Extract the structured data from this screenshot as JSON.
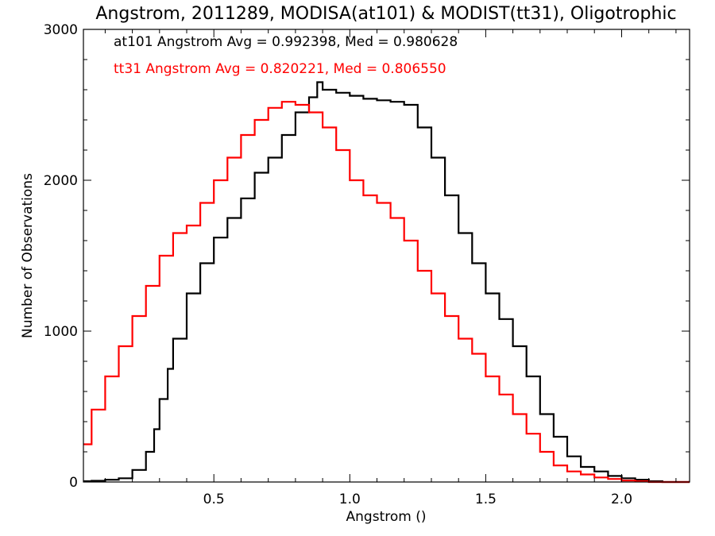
{
  "chart_data": {
    "type": "line",
    "style": "step-histogram",
    "title": "Angstrom, 2011289, MODISA(at101) & MODIST(tt31), Oligotrophic",
    "xlabel": "Angstrom ()",
    "ylabel": "Number of Observations",
    "xlim": [
      0.02,
      2.25
    ],
    "ylim": [
      0,
      3000
    ],
    "xticks": [
      0.5,
      1.0,
      1.5,
      2.0
    ],
    "xtick_labels": [
      "0.5",
      "1.0",
      "1.5",
      "2.0"
    ],
    "yticks": [
      0,
      1000,
      2000,
      3000
    ],
    "ytick_labels": [
      "0",
      "1000",
      "2000",
      "3000"
    ],
    "grid": false,
    "annotations": [
      {
        "text": "at101 Angstrom Avg = 0.992398, Med = 0.980628",
        "color": "#000000"
      },
      {
        "text": "tt31 Angstrom Avg = 0.820221, Med = 0.806550",
        "color": "#ff0000"
      }
    ],
    "series": [
      {
        "color": "#000000",
        "x": [
          0.02,
          0.05,
          0.1,
          0.15,
          0.2,
          0.25,
          0.28,
          0.3,
          0.33,
          0.35,
          0.4,
          0.45,
          0.5,
          0.55,
          0.6,
          0.65,
          0.7,
          0.75,
          0.8,
          0.85,
          0.88,
          0.9,
          0.95,
          1.0,
          1.05,
          1.1,
          1.15,
          1.2,
          1.25,
          1.3,
          1.35,
          1.4,
          1.45,
          1.5,
          1.55,
          1.6,
          1.65,
          1.7,
          1.75,
          1.8,
          1.85,
          1.9,
          1.95,
          2.0,
          2.05,
          2.1,
          2.15,
          2.2,
          2.25
        ],
        "y": [
          5,
          8,
          15,
          25,
          80,
          200,
          350,
          550,
          750,
          950,
          1250,
          1450,
          1620,
          1750,
          1880,
          2050,
          2150,
          2300,
          2450,
          2550,
          2650,
          2600,
          2580,
          2560,
          2540,
          2530,
          2520,
          2500,
          2350,
          2150,
          1900,
          1650,
          1450,
          1250,
          1080,
          900,
          700,
          450,
          300,
          170,
          100,
          70,
          40,
          25,
          15,
          5,
          0,
          0,
          0
        ]
      },
      {
        "color": "#ff0000",
        "x": [
          0.02,
          0.05,
          0.1,
          0.15,
          0.2,
          0.25,
          0.3,
          0.35,
          0.4,
          0.45,
          0.5,
          0.55,
          0.6,
          0.65,
          0.7,
          0.75,
          0.8,
          0.85,
          0.9,
          0.95,
          1.0,
          1.05,
          1.1,
          1.15,
          1.2,
          1.25,
          1.3,
          1.35,
          1.4,
          1.45,
          1.5,
          1.55,
          1.6,
          1.65,
          1.7,
          1.75,
          1.8,
          1.85,
          1.9,
          1.95,
          2.0,
          2.05,
          2.1,
          2.15,
          2.2,
          2.25
        ],
        "y": [
          250,
          480,
          700,
          900,
          1100,
          1300,
          1500,
          1650,
          1700,
          1850,
          2000,
          2150,
          2300,
          2400,
          2480,
          2520,
          2500,
          2450,
          2350,
          2200,
          2000,
          1900,
          1850,
          1750,
          1600,
          1400,
          1250,
          1100,
          950,
          850,
          700,
          580,
          450,
          320,
          200,
          110,
          70,
          50,
          30,
          20,
          10,
          5,
          0,
          0,
          0,
          0
        ]
      }
    ]
  }
}
